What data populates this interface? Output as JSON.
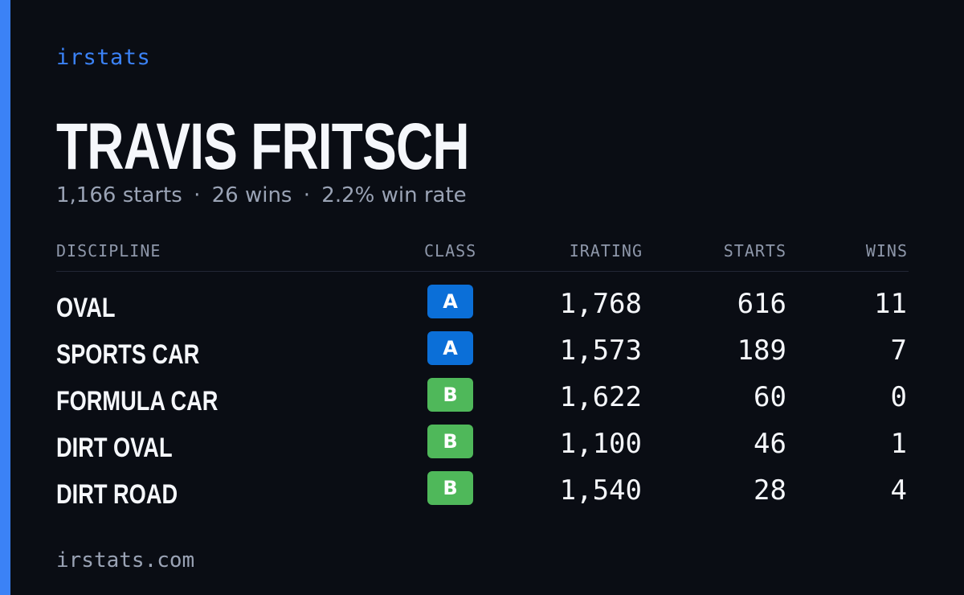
{
  "brand": "irstats",
  "player": {
    "name": "TRAVIS FRITSCH",
    "starts_text": "1,166 starts",
    "wins_text": "26 wins",
    "win_rate_text": "2.2% win rate",
    "separator": "·"
  },
  "table": {
    "headers": {
      "discipline": "DISCIPLINE",
      "class": "CLASS",
      "irating": "IRATING",
      "starts": "STARTS",
      "wins": "WINS"
    },
    "rows": [
      {
        "discipline": "OVAL",
        "class": "A",
        "irating": "1,768",
        "starts": "616",
        "wins": "11"
      },
      {
        "discipline": "SPORTS CAR",
        "class": "A",
        "irating": "1,573",
        "starts": "189",
        "wins": "7"
      },
      {
        "discipline": "FORMULA CAR",
        "class": "B",
        "irating": "1,622",
        "starts": "60",
        "wins": "0"
      },
      {
        "discipline": "DIRT OVAL",
        "class": "B",
        "irating": "1,100",
        "starts": "46",
        "wins": "1"
      },
      {
        "discipline": "DIRT ROAD",
        "class": "B",
        "irating": "1,540",
        "starts": "28",
        "wins": "4"
      }
    ]
  },
  "colors": {
    "accent": "#3b82f6",
    "class_a": "#0b6fd8",
    "class_b": "#4fb85a",
    "background": "#0a0d14"
  },
  "footer": "irstats.com"
}
